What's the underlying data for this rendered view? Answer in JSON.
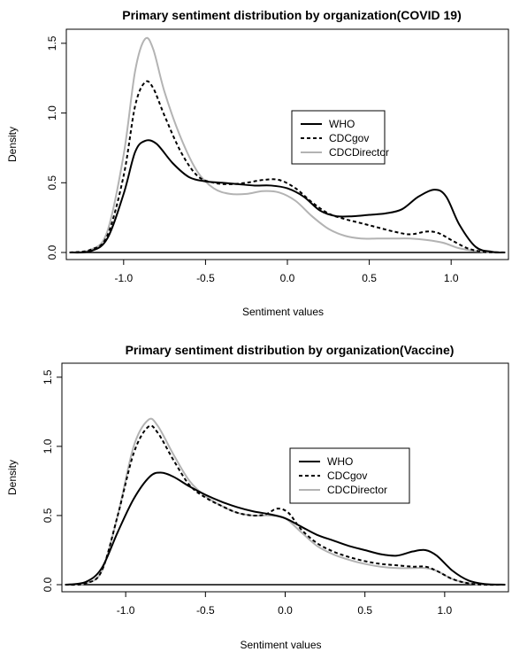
{
  "chart_data": [
    {
      "type": "line",
      "title": "Primary sentiment distribution by organization(COVID 19)",
      "xlabel": "Sentiment values",
      "ylabel": "Density",
      "xlim": [
        -1.35,
        1.35
      ],
      "ylim": [
        0,
        1.55
      ],
      "x_ticks": [
        "-1.0",
        "-0.5",
        "0.0",
        "0.5",
        "1.0"
      ],
      "y_ticks": [
        "0.0",
        "0.5",
        "1.0",
        "1.5"
      ],
      "legend_position": "right",
      "series": [
        {
          "name": "WHO",
          "color": "#000000",
          "dash": "solid",
          "points": [
            [
              -1.33,
              0
            ],
            [
              -1.2,
              0.01
            ],
            [
              -1.1,
              0.1
            ],
            [
              -1.0,
              0.42
            ],
            [
              -0.93,
              0.72
            ],
            [
              -0.87,
              0.8
            ],
            [
              -0.8,
              0.78
            ],
            [
              -0.7,
              0.64
            ],
            [
              -0.6,
              0.54
            ],
            [
              -0.5,
              0.51
            ],
            [
              -0.4,
              0.5
            ],
            [
              -0.3,
              0.49
            ],
            [
              -0.2,
              0.48
            ],
            [
              -0.1,
              0.48
            ],
            [
              0.0,
              0.46
            ],
            [
              0.1,
              0.4
            ],
            [
              0.2,
              0.3
            ],
            [
              0.3,
              0.26
            ],
            [
              0.4,
              0.26
            ],
            [
              0.5,
              0.27
            ],
            [
              0.6,
              0.28
            ],
            [
              0.7,
              0.31
            ],
            [
              0.8,
              0.4
            ],
            [
              0.9,
              0.45
            ],
            [
              0.97,
              0.4
            ],
            [
              1.05,
              0.2
            ],
            [
              1.15,
              0.04
            ],
            [
              1.25,
              0.005
            ],
            [
              1.33,
              0
            ]
          ]
        },
        {
          "name": "CDCgov",
          "color": "#000000",
          "dash": "dashed",
          "points": [
            [
              -1.33,
              0
            ],
            [
              -1.2,
              0.02
            ],
            [
              -1.1,
              0.12
            ],
            [
              -1.0,
              0.55
            ],
            [
              -0.93,
              1.05
            ],
            [
              -0.87,
              1.22
            ],
            [
              -0.82,
              1.18
            ],
            [
              -0.75,
              0.98
            ],
            [
              -0.65,
              0.72
            ],
            [
              -0.55,
              0.55
            ],
            [
              -0.45,
              0.5
            ],
            [
              -0.35,
              0.49
            ],
            [
              -0.25,
              0.5
            ],
            [
              -0.15,
              0.52
            ],
            [
              -0.05,
              0.52
            ],
            [
              0.05,
              0.46
            ],
            [
              0.15,
              0.36
            ],
            [
              0.25,
              0.28
            ],
            [
              0.35,
              0.24
            ],
            [
              0.45,
              0.21
            ],
            [
              0.55,
              0.18
            ],
            [
              0.65,
              0.15
            ],
            [
              0.75,
              0.13
            ],
            [
              0.85,
              0.15
            ],
            [
              0.92,
              0.14
            ],
            [
              1.0,
              0.09
            ],
            [
              1.1,
              0.03
            ],
            [
              1.2,
              0.005
            ],
            [
              1.33,
              0
            ]
          ]
        },
        {
          "name": "CDCDirector",
          "color": "#b3b3b3",
          "dash": "solid",
          "points": [
            [
              -1.33,
              0
            ],
            [
              -1.2,
              0.02
            ],
            [
              -1.1,
              0.15
            ],
            [
              -1.0,
              0.7
            ],
            [
              -0.93,
              1.3
            ],
            [
              -0.87,
              1.53
            ],
            [
              -0.82,
              1.46
            ],
            [
              -0.75,
              1.15
            ],
            [
              -0.65,
              0.82
            ],
            [
              -0.55,
              0.58
            ],
            [
              -0.45,
              0.46
            ],
            [
              -0.35,
              0.42
            ],
            [
              -0.25,
              0.42
            ],
            [
              -0.15,
              0.44
            ],
            [
              -0.05,
              0.43
            ],
            [
              0.05,
              0.37
            ],
            [
              0.15,
              0.26
            ],
            [
              0.25,
              0.17
            ],
            [
              0.35,
              0.12
            ],
            [
              0.45,
              0.1
            ],
            [
              0.55,
              0.1
            ],
            [
              0.65,
              0.1
            ],
            [
              0.75,
              0.1
            ],
            [
              0.85,
              0.09
            ],
            [
              0.95,
              0.07
            ],
            [
              1.05,
              0.03
            ],
            [
              1.15,
              0.01
            ],
            [
              1.25,
              0
            ],
            [
              1.33,
              0
            ]
          ]
        }
      ]
    },
    {
      "type": "line",
      "title": "Primary sentiment distribution by organization(Vaccine)",
      "xlabel": "Sentiment values",
      "ylabel": "Density",
      "xlim": [
        -1.4,
        1.4
      ],
      "ylim": [
        0,
        1.55
      ],
      "x_ticks": [
        "-1.0",
        "-0.5",
        "0.0",
        "0.5",
        "1.0"
      ],
      "y_ticks": [
        "0.0",
        "0.5",
        "1.0",
        "1.5"
      ],
      "legend_position": "right",
      "series": [
        {
          "name": "WHO",
          "color": "#000000",
          "dash": "solid",
          "points": [
            [
              -1.38,
              0
            ],
            [
              -1.25,
              0.02
            ],
            [
              -1.15,
              0.12
            ],
            [
              -1.05,
              0.38
            ],
            [
              -0.95,
              0.62
            ],
            [
              -0.85,
              0.78
            ],
            [
              -0.78,
              0.81
            ],
            [
              -0.7,
              0.78
            ],
            [
              -0.6,
              0.71
            ],
            [
              -0.5,
              0.65
            ],
            [
              -0.4,
              0.6
            ],
            [
              -0.3,
              0.56
            ],
            [
              -0.2,
              0.53
            ],
            [
              -0.1,
              0.51
            ],
            [
              0.0,
              0.48
            ],
            [
              0.1,
              0.42
            ],
            [
              0.2,
              0.36
            ],
            [
              0.3,
              0.32
            ],
            [
              0.4,
              0.28
            ],
            [
              0.5,
              0.25
            ],
            [
              0.6,
              0.22
            ],
            [
              0.7,
              0.21
            ],
            [
              0.8,
              0.24
            ],
            [
              0.88,
              0.25
            ],
            [
              0.95,
              0.21
            ],
            [
              1.05,
              0.1
            ],
            [
              1.15,
              0.03
            ],
            [
              1.25,
              0.005
            ],
            [
              1.38,
              0
            ]
          ]
        },
        {
          "name": "CDCgov",
          "color": "#000000",
          "dash": "dashed",
          "points": [
            [
              -1.38,
              0
            ],
            [
              -1.25,
              0.01
            ],
            [
              -1.15,
              0.1
            ],
            [
              -1.05,
              0.5
            ],
            [
              -0.95,
              0.95
            ],
            [
              -0.86,
              1.14
            ],
            [
              -0.8,
              1.1
            ],
            [
              -0.7,
              0.9
            ],
            [
              -0.6,
              0.72
            ],
            [
              -0.5,
              0.63
            ],
            [
              -0.4,
              0.57
            ],
            [
              -0.3,
              0.52
            ],
            [
              -0.2,
              0.5
            ],
            [
              -0.12,
              0.51
            ],
            [
              -0.05,
              0.55
            ],
            [
              0.02,
              0.52
            ],
            [
              0.1,
              0.4
            ],
            [
              0.2,
              0.3
            ],
            [
              0.3,
              0.24
            ],
            [
              0.4,
              0.2
            ],
            [
              0.5,
              0.17
            ],
            [
              0.6,
              0.15
            ],
            [
              0.7,
              0.14
            ],
            [
              0.8,
              0.13
            ],
            [
              0.88,
              0.13
            ],
            [
              0.95,
              0.1
            ],
            [
              1.05,
              0.04
            ],
            [
              1.15,
              0.01
            ],
            [
              1.25,
              0
            ],
            [
              1.38,
              0
            ]
          ]
        },
        {
          "name": "CDCDirector",
          "color": "#b3b3b3",
          "dash": "solid",
          "points": [
            [
              -1.38,
              0
            ],
            [
              -1.25,
              0.01
            ],
            [
              -1.15,
              0.1
            ],
            [
              -1.05,
              0.5
            ],
            [
              -0.95,
              1.0
            ],
            [
              -0.86,
              1.19
            ],
            [
              -0.8,
              1.15
            ],
            [
              -0.7,
              0.94
            ],
            [
              -0.6,
              0.75
            ],
            [
              -0.5,
              0.64
            ],
            [
              -0.4,
              0.57
            ],
            [
              -0.3,
              0.52
            ],
            [
              -0.2,
              0.5
            ],
            [
              -0.1,
              0.5
            ],
            [
              0.0,
              0.48
            ],
            [
              0.1,
              0.38
            ],
            [
              0.2,
              0.28
            ],
            [
              0.3,
              0.22
            ],
            [
              0.4,
              0.18
            ],
            [
              0.5,
              0.15
            ],
            [
              0.6,
              0.13
            ],
            [
              0.7,
              0.12
            ],
            [
              0.8,
              0.12
            ],
            [
              0.88,
              0.12
            ],
            [
              0.95,
              0.1
            ],
            [
              1.05,
              0.04
            ],
            [
              1.15,
              0.01
            ],
            [
              1.25,
              0
            ],
            [
              1.38,
              0
            ]
          ]
        }
      ]
    }
  ]
}
